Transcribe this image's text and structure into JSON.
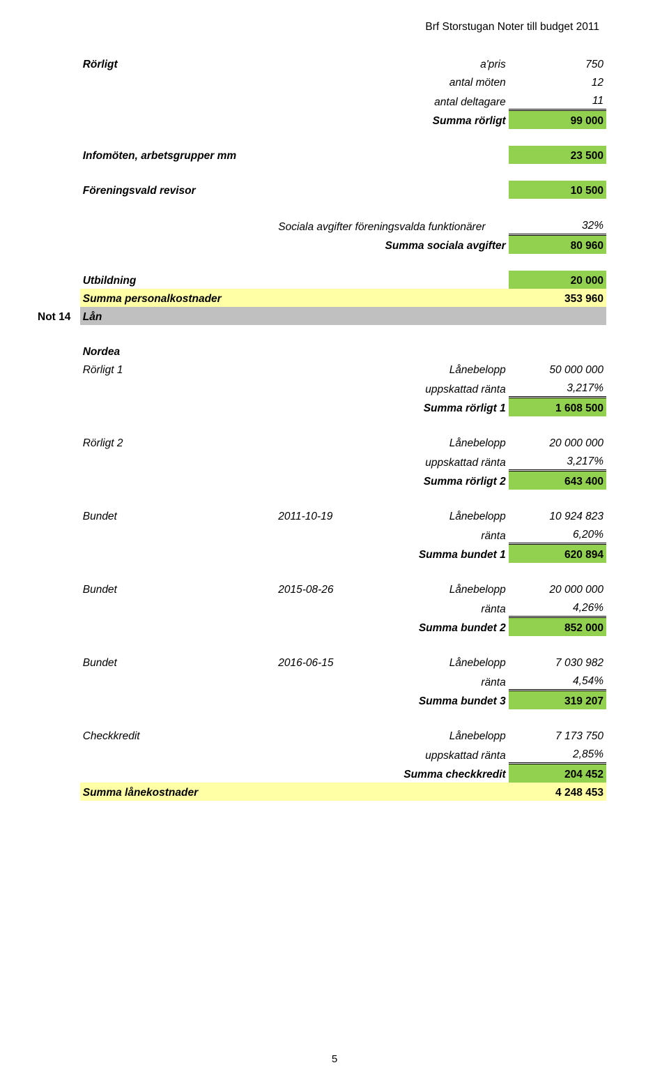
{
  "header": "Brf Storstugan Noter till budget 2011",
  "note_label": "Not 14",
  "colors": {
    "green": "#92d050",
    "yellow": "#ffffa6",
    "grey": "#c0c0c0"
  },
  "rows": {
    "rorligt_heading": "Rörligt",
    "apris_label": "a'pris",
    "apris_val": "750",
    "antal_moten_label": "antal möten",
    "antal_moten_val": "12",
    "antal_deltagare_label": "antal deltagare",
    "antal_deltagare_val": "11",
    "summa_rorligt_label": "Summa rörligt",
    "summa_rorligt_val": "99 000",
    "infomoten_label": "Infomöten, arbetsgrupper mm",
    "infomoten_val": "23 500",
    "revisor_label": "Föreningsvald revisor",
    "revisor_val": "10 500",
    "sociala_label": "Sociala avgifter föreningsvalda funktionärer",
    "sociala_pct": "32%",
    "summa_sociala_label": "Summa sociala avgifter",
    "summa_sociala_val": "80 960",
    "utbildning_label": "Utbildning",
    "utbildning_val": "20 000",
    "summa_personal_label": "Summa personalkostnader",
    "summa_personal_val": "353 960",
    "lan_label": "Lån",
    "nordea_label": "Nordea",
    "rorligt1_label": "Rörligt 1",
    "lanebelopp": "Lånebelopp",
    "uppskattad_ranta": "uppskattad ränta",
    "ranta": "ränta",
    "rorligt1_belopp": "50 000 000",
    "rorligt1_ranta": "3,217%",
    "summa_rorligt1_label": "Summa rörligt 1",
    "summa_rorligt1_val": "1 608 500",
    "rorligt2_label": "Rörligt 2",
    "rorligt2_belopp": "20 000 000",
    "rorligt2_ranta": "3,217%",
    "summa_rorligt2_label": "Summa rörligt 2",
    "summa_rorligt2_val": "643 400",
    "bundet_label": "Bundet",
    "b1_date": "2011-10-19",
    "b1_belopp": "10 924 823",
    "b1_ranta": "6,20%",
    "summa_b1_label": "Summa bundet 1",
    "summa_b1_val": "620 894",
    "b2_date": "2015-08-26",
    "b2_belopp": "20 000 000",
    "b2_ranta": "4,26%",
    "summa_b2_label": "Summa bundet 2",
    "summa_b2_val": "852 000",
    "b3_date": "2016-06-15",
    "b3_belopp": "7 030 982",
    "b3_ranta": "4,54%",
    "summa_b3_label": "Summa bundet 3",
    "summa_b3_val": "319 207",
    "check_label": "Checkkredit",
    "check_belopp": "7 173 750",
    "check_ranta": "2,85%",
    "summa_check_label": "Summa checkkredit",
    "summa_check_val": "204 452",
    "summa_lan_label": "Summa lånekostnader",
    "summa_lan_val": "4 248 453"
  },
  "page_number": "5"
}
